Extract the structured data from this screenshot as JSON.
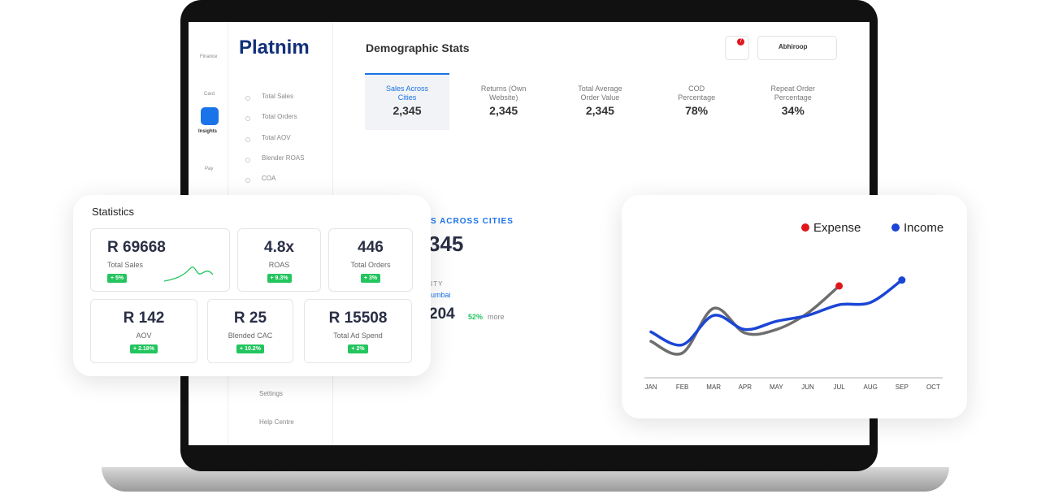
{
  "sidebar": {
    "icons": [
      "Finance",
      "Card",
      "Insights",
      "Pay"
    ],
    "logo": "Platnim",
    "menu": [
      "Total Sales",
      "Total Orders",
      "Total AOV",
      "Blender ROAS",
      "COA"
    ],
    "footer_menu": [
      "Settings",
      "Help Centre"
    ]
  },
  "header": {
    "title": "Demographic Stats",
    "notification_count": "7",
    "user": "Abhiroop"
  },
  "tabs": [
    {
      "label": "Sales Across Cities",
      "value": "2,345"
    },
    {
      "label": "Returns (Own Website)",
      "value": "2,345"
    },
    {
      "label": "Total Average Order Value",
      "value": "2,345"
    },
    {
      "label": "COD Percentage",
      "value": "78%"
    },
    {
      "label": "Repeat Order Percentage",
      "value": "34%"
    }
  ],
  "panel": {
    "heading": "S ACROSS CITIES",
    "value": "345",
    "city_label": "ITY",
    "city": "umbai",
    "city_value": "204",
    "change": "52%",
    "change_note": "more"
  },
  "statistics": {
    "title": "Statistics",
    "cards": [
      {
        "value": "R 69668",
        "label": "Total Sales",
        "change": "+ 5%"
      },
      {
        "value": "4.8x",
        "label": "ROAS",
        "change": "+ 9.3%"
      },
      {
        "value": "446",
        "label": "Total Orders",
        "change": "+ 3%"
      },
      {
        "value": "R 142",
        "label": "AOV",
        "change": "+ 2.18%"
      },
      {
        "value": "R 25",
        "label": "Blended CAC",
        "change": "+ 10.2%"
      },
      {
        "value": "R 15508",
        "label": "Total Ad Spend",
        "change": "+ 2%"
      }
    ]
  },
  "chart_data": {
    "type": "line",
    "categories": [
      "JAN",
      "FEB",
      "MAR",
      "APR",
      "MAY",
      "JUN",
      "JUL",
      "AUG",
      "SEP",
      "OCT"
    ],
    "series": [
      {
        "name": "Expense",
        "color": "#6e6e6e",
        "marker_color": "#e0161d",
        "values": [
          31,
          21,
          59,
          38,
          41,
          55,
          78,
          null,
          null,
          null
        ]
      },
      {
        "name": "Income",
        "color": "#1b45d6",
        "marker_color": "#1b45d6",
        "values": [
          39,
          28,
          53,
          41,
          48,
          53,
          62,
          64,
          83,
          null
        ]
      }
    ],
    "ylim": [
      0,
      100
    ],
    "legend": "top-right"
  }
}
